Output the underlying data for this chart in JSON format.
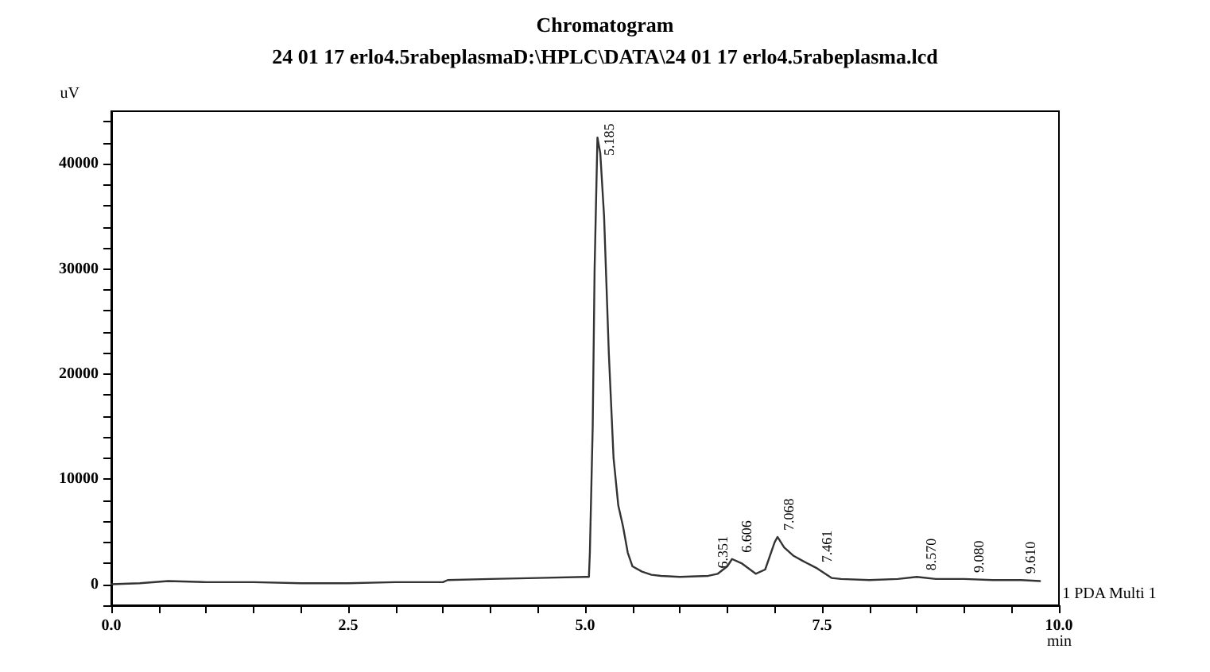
{
  "chart_data": {
    "type": "line",
    "title": "Chromatogram",
    "subtitle": "24 01 17 erlo4.5rabeplasmaD:\\HPLC\\DATA\\24 01 17 erlo4.5rabeplasma.lcd",
    "xlabel": "min",
    "ylabel": "uV",
    "series": [
      {
        "name": "1 PDA Multi 1",
        "color": "#333333",
        "x": [
          0.0,
          0.3,
          0.6,
          1.0,
          1.5,
          2.0,
          2.5,
          3.0,
          3.5,
          3.55,
          4.0,
          4.5,
          5.0,
          5.04,
          5.05,
          5.08,
          5.1,
          5.13,
          5.16,
          5.2,
          5.25,
          5.3,
          5.35,
          5.4,
          5.45,
          5.5,
          5.6,
          5.7,
          5.8,
          6.0,
          6.3,
          6.4,
          6.5,
          6.55,
          6.65,
          6.8,
          6.9,
          7.0,
          7.03,
          7.1,
          7.2,
          7.3,
          7.45,
          7.6,
          7.7,
          8.0,
          8.3,
          8.5,
          8.7,
          9.0,
          9.3,
          9.6,
          9.8
        ],
        "values": [
          0,
          100,
          300,
          200,
          200,
          100,
          100,
          200,
          200,
          400,
          500,
          600,
          700,
          700,
          3000,
          15000,
          30000,
          42500,
          41000,
          35000,
          22000,
          12000,
          7500,
          5500,
          3000,
          1700,
          1200,
          900,
          800,
          700,
          800,
          1000,
          1700,
          2400,
          2000,
          1000,
          1400,
          4000,
          4500,
          3500,
          2700,
          2200,
          1500,
          600,
          500,
          400,
          500,
          700,
          500,
          500,
          400,
          400,
          300
        ]
      }
    ],
    "annotations": [
      {
        "text": "5.185",
        "x": 5.15,
        "y": 42500
      },
      {
        "text": "6.351",
        "x": 6.35,
        "y": 900
      },
      {
        "text": "6.606",
        "x": 6.6,
        "y": 2400
      },
      {
        "text": "7.068",
        "x": 7.05,
        "y": 4500
      },
      {
        "text": "7.461",
        "x": 7.45,
        "y": 1450
      },
      {
        "text": "8.570",
        "x": 8.55,
        "y": 700
      },
      {
        "text": "9.080",
        "x": 9.05,
        "y": 500
      },
      {
        "text": "9.610",
        "x": 9.6,
        "y": 400
      }
    ],
    "xlim": [
      0,
      10
    ],
    "xticks": [
      {
        "value": 0,
        "label": "0.0"
      },
      {
        "value": 0.5,
        "label": null
      },
      {
        "value": 1.0,
        "label": null
      },
      {
        "value": 1.5,
        "label": null
      },
      {
        "value": 2.0,
        "label": null
      },
      {
        "value": 2.5,
        "label": "2.5"
      },
      {
        "value": 3.0,
        "label": null
      },
      {
        "value": 3.5,
        "label": null
      },
      {
        "value": 4.0,
        "label": null
      },
      {
        "value": 4.5,
        "label": null
      },
      {
        "value": 5.0,
        "label": "5.0"
      },
      {
        "value": 5.5,
        "label": null
      },
      {
        "value": 6.0,
        "label": null
      },
      {
        "value": 6.5,
        "label": null
      },
      {
        "value": 7.0,
        "label": null
      },
      {
        "value": 7.5,
        "label": "7.5"
      },
      {
        "value": 8.0,
        "label": null
      },
      {
        "value": 8.5,
        "label": null
      },
      {
        "value": 9.0,
        "label": null
      },
      {
        "value": 9.5,
        "label": null
      },
      {
        "value": 10.0,
        "label": "10.0"
      }
    ],
    "ylim": [
      -2000,
      45000
    ],
    "yticks": [
      {
        "value": -2000,
        "label": null
      },
      0,
      {
        "value": 2000,
        "label": null
      },
      {
        "value": 4000,
        "label": null
      },
      {
        "value": 6000,
        "label": null
      },
      {
        "value": 8000,
        "label": null
      },
      10000,
      {
        "value": 12000,
        "label": null
      },
      {
        "value": 14000,
        "label": null
      },
      {
        "value": 16000,
        "label": null
      },
      {
        "value": 18000,
        "label": null
      },
      20000,
      {
        "value": 22000,
        "label": null
      },
      {
        "value": 24000,
        "label": null
      },
      {
        "value": 26000,
        "label": null
      },
      {
        "value": 28000,
        "label": null
      },
      30000,
      {
        "value": 32000,
        "label": null
      },
      {
        "value": 34000,
        "label": null
      },
      {
        "value": 36000,
        "label": null
      },
      {
        "value": 38000,
        "label": null
      },
      40000,
      {
        "value": 42000,
        "label": null
      },
      {
        "value": 44000,
        "label": null
      }
    ],
    "grid": false,
    "legend": false,
    "marker": "none",
    "line_style": "solid"
  }
}
